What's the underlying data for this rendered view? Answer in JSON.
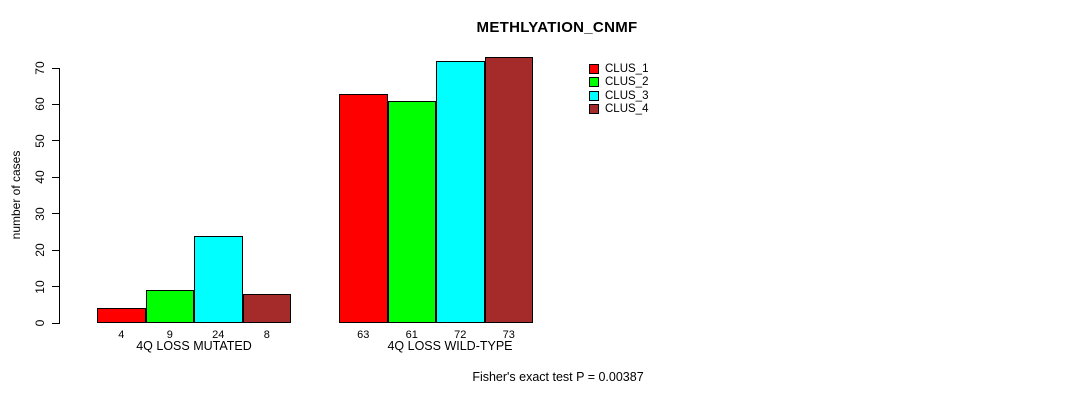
{
  "title": "METHLYATION_CNMF",
  "annotation": "Fisher's exact test P = 0.00387",
  "chart_data": {
    "type": "bar",
    "title": "METHLYATION_CNMF",
    "xlabel": "",
    "ylabel": "number of cases",
    "ylim": [
      0,
      70
    ],
    "yticks": [
      0,
      10,
      20,
      30,
      40,
      50,
      60,
      70
    ],
    "grid": false,
    "legend_position": "top-right",
    "bar_border_color": "#000000",
    "categories": [
      "4Q LOSS MUTATED",
      "4Q LOSS WILD-TYPE"
    ],
    "series": [
      {
        "name": "CLUS_1",
        "color": "#ff0000",
        "values": [
          4,
          63
        ]
      },
      {
        "name": "CLUS_2",
        "color": "#00ff00",
        "values": [
          9,
          61
        ]
      },
      {
        "name": "CLUS_3",
        "color": "#00ffff",
        "values": [
          24,
          72
        ]
      },
      {
        "name": "CLUS_4",
        "color": "#a52a2a",
        "values": [
          8,
          73
        ]
      }
    ],
    "bar_value_labels": {
      "4Q LOSS MUTATED": [
        4,
        9,
        24,
        8
      ],
      "4Q LOSS WILD-TYPE": [
        63,
        61,
        72,
        73
      ]
    }
  }
}
